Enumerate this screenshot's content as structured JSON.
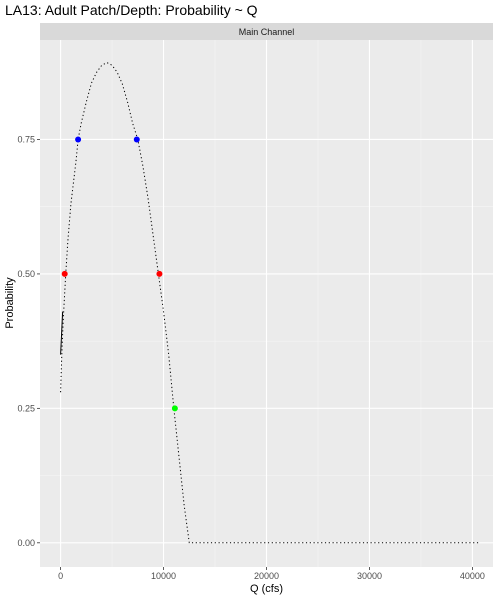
{
  "chart_data": {
    "type": "line",
    "title": "LA13: Adult Patch/Depth: Probability ~ Q",
    "facet_label": "Main Channel",
    "xlabel": "Q (cfs)",
    "ylabel": "Probability",
    "xlim": [
      -2000,
      42000
    ],
    "ylim": [
      -0.045,
      0.935
    ],
    "x_ticks": [
      0,
      10000,
      20000,
      30000,
      40000
    ],
    "x_tick_labels": [
      "0",
      "10000",
      "20000",
      "30000",
      "40000"
    ],
    "y_ticks": [
      0.0,
      0.25,
      0.5,
      0.75
    ],
    "y_tick_labels": [
      "0.00",
      "0.25",
      "0.50",
      "0.75"
    ],
    "grid": true,
    "series": [
      {
        "style": "dotted",
        "color": "#000000",
        "points": [
          [
            0,
            0.28
          ],
          [
            100,
            0.34
          ],
          [
            200,
            0.39
          ],
          [
            300,
            0.43
          ],
          [
            500,
            0.5
          ],
          [
            700,
            0.56
          ],
          [
            1000,
            0.63
          ],
          [
            1500,
            0.71
          ],
          [
            1700,
            0.75
          ],
          [
            2000,
            0.78
          ],
          [
            2500,
            0.82
          ],
          [
            3000,
            0.855
          ],
          [
            3500,
            0.875
          ],
          [
            4000,
            0.888
          ],
          [
            4500,
            0.893
          ],
          [
            5000,
            0.888
          ],
          [
            5500,
            0.875
          ],
          [
            6000,
            0.853
          ],
          [
            6500,
            0.82
          ],
          [
            7000,
            0.78
          ],
          [
            7500,
            0.75
          ],
          [
            8000,
            0.7
          ],
          [
            8500,
            0.64
          ],
          [
            9000,
            0.57
          ],
          [
            9500,
            0.5
          ],
          [
            10000,
            0.43
          ],
          [
            10500,
            0.35
          ],
          [
            11000,
            0.25
          ],
          [
            11500,
            0.16
          ],
          [
            12000,
            0.07
          ],
          [
            12500,
            0.0
          ],
          [
            20000,
            0.0
          ],
          [
            30000,
            0.0
          ],
          [
            40800,
            0.0
          ]
        ]
      },
      {
        "style": "solid",
        "color": "#000000",
        "points": [
          [
            0,
            0.35
          ],
          [
            100,
            0.39
          ],
          [
            200,
            0.43
          ]
        ]
      }
    ],
    "highlight_points": [
      {
        "x": 1700,
        "y": 0.75,
        "color": "#0000ff"
      },
      {
        "x": 7400,
        "y": 0.75,
        "color": "#0000ff"
      },
      {
        "x": 400,
        "y": 0.5,
        "color": "#ff0000"
      },
      {
        "x": 9600,
        "y": 0.5,
        "color": "#ff0000"
      },
      {
        "x": 11100,
        "y": 0.25,
        "color": "#00ff00"
      }
    ]
  }
}
